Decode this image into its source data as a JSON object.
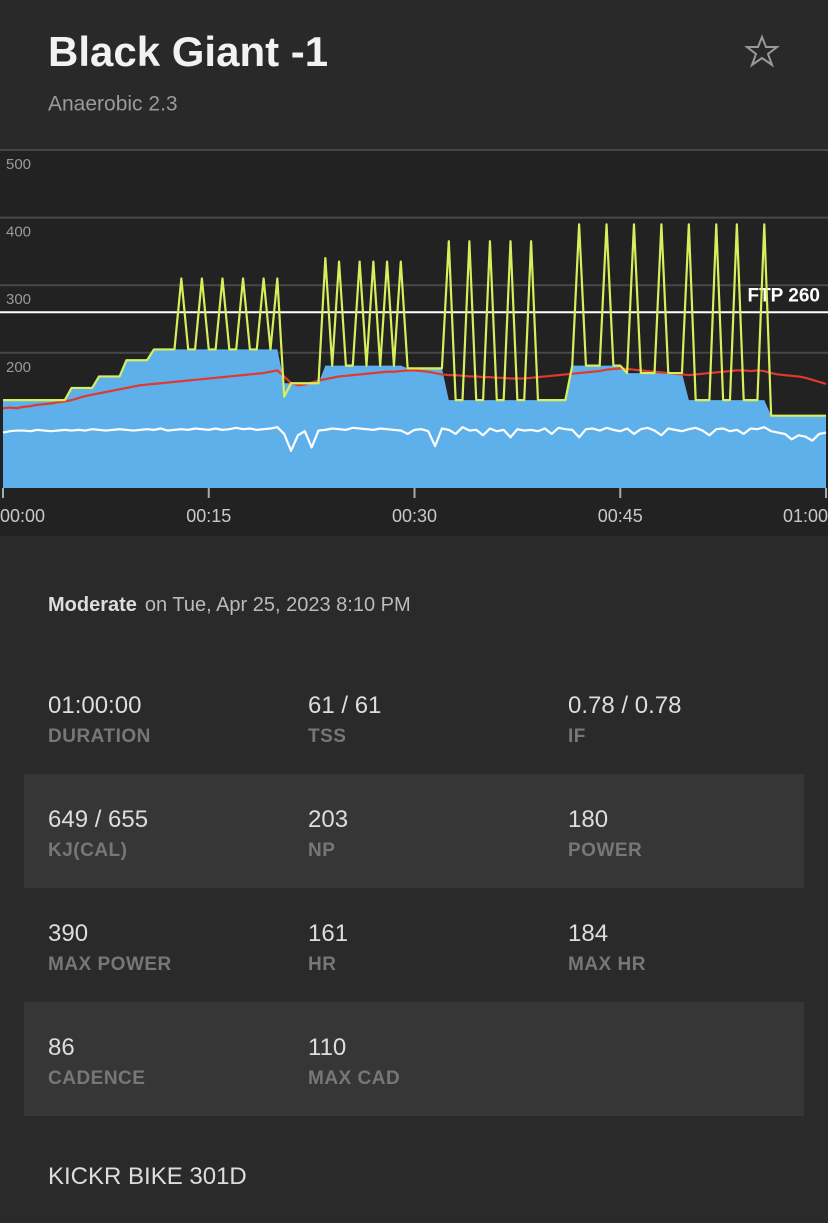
{
  "header": {
    "title": "Black Giant -1",
    "subtitle": "Anaerobic 2.3"
  },
  "chart_data": {
    "type": "line",
    "x": [
      0,
      0.5,
      1,
      1.5,
      2,
      2.5,
      3,
      3.5,
      4,
      4.5,
      5,
      5.5,
      6,
      6.5,
      7,
      7.5,
      8,
      8.5,
      9,
      9.5,
      10,
      10.5,
      11,
      11.5,
      12,
      12.5,
      13,
      13.5,
      14,
      14.5,
      15,
      15.5,
      16,
      16.5,
      17,
      17.5,
      18,
      18.5,
      19,
      19.5,
      20,
      20.5,
      21,
      21.5,
      22,
      22.5,
      23,
      23.5,
      24,
      24.5,
      25,
      25.5,
      26,
      26.5,
      27,
      27.5,
      28,
      28.5,
      29,
      29.5,
      30,
      30.5,
      31,
      31.5,
      32,
      32.5,
      33,
      33.5,
      34,
      34.5,
      35,
      35.5,
      36,
      36.5,
      37,
      37.5,
      38,
      38.5,
      39,
      39.5,
      40,
      40.5,
      41,
      41.5,
      42,
      42.5,
      43,
      43.5,
      44,
      44.5,
      45,
      45.5,
      46,
      46.5,
      47,
      47.5,
      48,
      48.5,
      49,
      49.5,
      50,
      50.5,
      51,
      51.5,
      52,
      52.5,
      53,
      53.5,
      54,
      54.5,
      55,
      55.5,
      56,
      56.5,
      57,
      57.5,
      58,
      58.5,
      59,
      59.5,
      60
    ],
    "xlim": [
      0,
      60
    ],
    "xticks": [
      {
        "value": 0,
        "label": "00:00"
      },
      {
        "value": 15,
        "label": "00:15"
      },
      {
        "value": 30,
        "label": "00:30"
      },
      {
        "value": 45,
        "label": "00:45"
      },
      {
        "value": 60,
        "label": "01:00"
      }
    ],
    "ylim": [
      0,
      500
    ],
    "yticks": [
      200,
      300,
      400,
      500
    ],
    "grid": true,
    "ftp": {
      "value": 260,
      "label": "FTP 260"
    },
    "series": [
      {
        "style": "area",
        "color": "#5eb0ea",
        "values": [
          130,
          130,
          130,
          130,
          130,
          130,
          130,
          130,
          130,
          130,
          148,
          148,
          148,
          148,
          165,
          165,
          165,
          165,
          189,
          189,
          189,
          189,
          205,
          205,
          205,
          205,
          205,
          205,
          205,
          205,
          205,
          205,
          205,
          205,
          205,
          205,
          205,
          205,
          205,
          205,
          205,
          155,
          155,
          155,
          155,
          155,
          155,
          181,
          181,
          181,
          181,
          181,
          181,
          181,
          181,
          181,
          181,
          181,
          181,
          177,
          177,
          177,
          177,
          177,
          177,
          130,
          130,
          130,
          130,
          130,
          130,
          130,
          130,
          130,
          130,
          130,
          130,
          130,
          130,
          130,
          130,
          130,
          130,
          181,
          181,
          181,
          181,
          181,
          181,
          181,
          181,
          170,
          170,
          170,
          170,
          170,
          170,
          170,
          170,
          170,
          130,
          130,
          130,
          130,
          130,
          130,
          130,
          130,
          130,
          130,
          130,
          130,
          107,
          107,
          107,
          107,
          107,
          107,
          107,
          107,
          107
        ]
      },
      {
        "style": "line",
        "color": "#ffffff",
        "values": [
          82,
          84,
          85,
          85,
          84,
          86,
          85,
          84,
          85,
          86,
          85,
          86,
          85,
          87,
          86,
          85,
          86,
          87,
          86,
          85,
          86,
          87,
          86,
          88,
          85,
          86,
          87,
          86,
          88,
          87,
          86,
          88,
          86,
          87,
          89,
          87,
          88,
          86,
          87,
          88,
          90,
          80,
          55,
          78,
          84,
          60,
          85,
          86,
          88,
          87,
          86,
          89,
          88,
          87,
          86,
          88,
          87,
          86,
          85,
          80,
          86,
          87,
          84,
          62,
          88,
          86,
          80,
          90,
          85,
          86,
          78,
          88,
          84,
          86,
          75,
          87,
          85,
          86,
          84,
          88,
          80,
          89,
          87,
          86,
          75,
          87,
          88,
          85,
          89,
          86,
          84,
          88,
          80,
          87,
          89,
          85,
          78,
          88,
          86,
          84,
          87,
          89,
          85,
          78,
          87,
          88,
          84,
          86,
          80,
          88,
          87,
          90,
          84,
          82,
          80,
          72,
          78,
          76,
          70,
          80,
          82
        ]
      },
      {
        "style": "line",
        "color": "#e0392e",
        "values": [
          118,
          119,
          118,
          120,
          121,
          123,
          124,
          125,
          127,
          128,
          130,
          133,
          136,
          138,
          140,
          142,
          144,
          146,
          148,
          150,
          152,
          153,
          154,
          155,
          156,
          157,
          158,
          159,
          160,
          161,
          162,
          163,
          164,
          165,
          166,
          167,
          168,
          169,
          170,
          172,
          174,
          165,
          155,
          152,
          153,
          156,
          159,
          161,
          163,
          165,
          166,
          167,
          168,
          169,
          170,
          171,
          172,
          172,
          173,
          174,
          174,
          173,
          172,
          170,
          168,
          167,
          167,
          166,
          165,
          165,
          164,
          164,
          163,
          163,
          162,
          162,
          162,
          163,
          164,
          165,
          166,
          167,
          168,
          169,
          170,
          171,
          172,
          173,
          175,
          176,
          177,
          176,
          175,
          174,
          173,
          172,
          171,
          170,
          169,
          168,
          167,
          168,
          169,
          170,
          171,
          172,
          173,
          174,
          174,
          173,
          174,
          173,
          170,
          168,
          167,
          166,
          165,
          163,
          160,
          157,
          154
        ]
      },
      {
        "style": "line",
        "color": "#d6ef5c",
        "values": [
          130,
          130,
          130,
          130,
          130,
          130,
          130,
          130,
          130,
          130,
          148,
          148,
          148,
          148,
          165,
          165,
          165,
          165,
          189,
          189,
          189,
          189,
          205,
          205,
          205,
          205,
          310,
          205,
          205,
          310,
          205,
          205,
          310,
          205,
          205,
          310,
          205,
          205,
          310,
          205,
          310,
          135,
          155,
          155,
          155,
          155,
          155,
          340,
          181,
          335,
          181,
          181,
          335,
          181,
          335,
          181,
          335,
          181,
          335,
          177,
          177,
          177,
          177,
          177,
          177,
          365,
          130,
          130,
          365,
          130,
          130,
          365,
          130,
          130,
          365,
          130,
          130,
          365,
          130,
          130,
          130,
          130,
          130,
          181,
          390,
          181,
          181,
          181,
          390,
          181,
          181,
          170,
          390,
          170,
          170,
          170,
          390,
          170,
          170,
          170,
          390,
          130,
          130,
          130,
          390,
          130,
          130,
          390,
          130,
          130,
          130,
          390,
          107,
          107,
          107,
          107,
          107,
          107,
          107,
          107,
          107
        ]
      }
    ]
  },
  "summary": {
    "intensity": "Moderate",
    "date": "on Tue, Apr 25, 2023 8:10 PM"
  },
  "stats": [
    [
      {
        "value": "01:00:00",
        "label": "DURATION"
      },
      {
        "value": "61 / 61",
        "label": "TSS"
      },
      {
        "value": "0.78 / 0.78",
        "label": "IF"
      }
    ],
    [
      {
        "value": "649 / 655",
        "label": "KJ(CAL)"
      },
      {
        "value": "203",
        "label": "NP"
      },
      {
        "value": "180",
        "label": "POWER"
      }
    ],
    [
      {
        "value": "390",
        "label": "MAX POWER"
      },
      {
        "value": "161",
        "label": "HR"
      },
      {
        "value": "184",
        "label": "MAX HR"
      }
    ],
    [
      {
        "value": "86",
        "label": "CADENCE"
      },
      {
        "value": "110",
        "label": "MAX CAD"
      }
    ]
  ],
  "device": "KICKR BIKE 301D"
}
